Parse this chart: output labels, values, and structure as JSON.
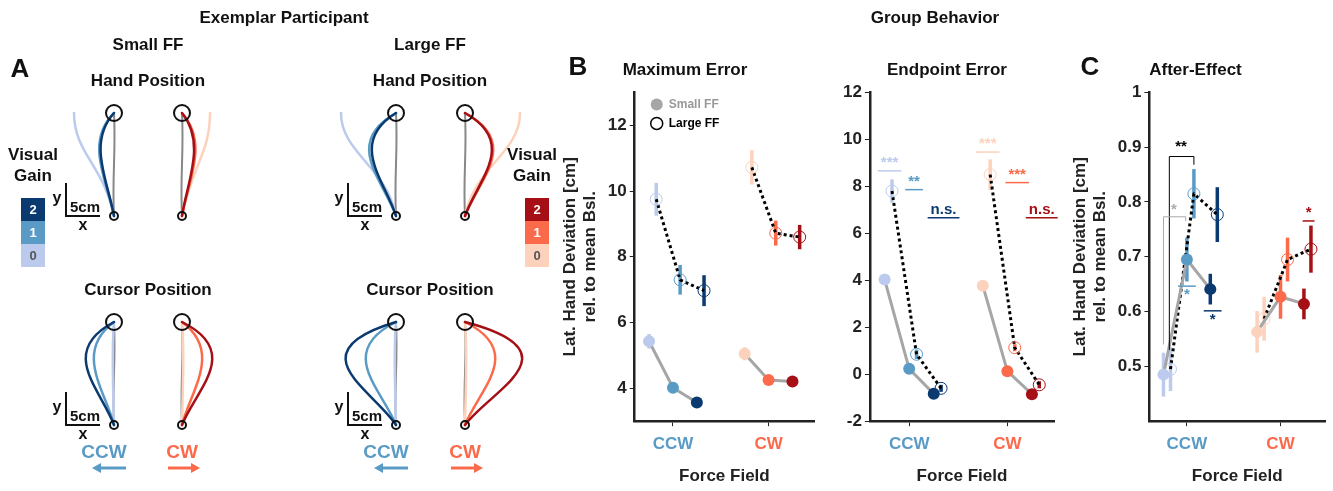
{
  "chart_data": [
    {
      "type": "other",
      "title": "Exemplar Participant",
      "annotations": [
        "A",
        "Small FF",
        "Large FF",
        "Hand Position",
        "Hand Position",
        "Cursor Position",
        "Cursor Position",
        "Visual Gain",
        "Visual Gain",
        "2",
        "1",
        "0",
        "2",
        "1",
        "0",
        "y",
        "5cm",
        "x",
        "y",
        "5cm",
        "x",
        "y",
        "5cm",
        "x",
        "y",
        "5cm",
        "x",
        "CCW",
        "CW",
        "CCW",
        "CW"
      ]
    },
    {
      "type": "line",
      "title": "Maximum Error",
      "xlabel": "Force Field",
      "ylabel": "Lat. Hand Deviation [cm]\nrel. to mean Bsl.",
      "categories": [
        null,
        "CCW",
        null,
        null,
        null,
        "CW",
        null
      ],
      "ylim": [
        3,
        13
      ],
      "yticks": [
        4,
        6,
        8,
        10,
        12
      ],
      "legend": "top left",
      "annotations": [
        "B",
        "Group Behavior"
      ],
      "series": [
        {
          "name": "Small FF",
          "type": "line",
          "color": "#a6a6a6",
          "colors": [
            "#bccbed",
            "#5a9bc6",
            "#0b3a70",
            null,
            "#fcd2bd",
            "#fb6a4a",
            "#a50f15"
          ],
          "marker": "circle",
          "line_style": "solid",
          "values": [
            5.43,
            4.02,
            3.57,
            null,
            5.05,
            4.25,
            4.21
          ],
          "errors": [
            0.22,
            0.13,
            0.12,
            null,
            0.2,
            0.12,
            0.12
          ]
        },
        {
          "name": "Large FF",
          "type": "line",
          "color": "#000000",
          "colors": [
            "#bccbed",
            "#5a9bc6",
            "#0b3a70",
            null,
            "#fcd2bd",
            "#fb6a4a",
            "#a50f15"
          ],
          "marker": "circle",
          "line_style": "dotted",
          "values": [
            9.75,
            7.3,
            6.97,
            null,
            10.72,
            8.72,
            8.6
          ],
          "errors": [
            0.5,
            0.45,
            0.47,
            null,
            0.52,
            0.38,
            0.37
          ]
        }
      ]
    },
    {
      "type": "line",
      "title": "Endpoint Error",
      "xlabel": "Force Field",
      "categories": [
        null,
        "CCW",
        null,
        null,
        null,
        "CW",
        null
      ],
      "ylim": [
        -2,
        12
      ],
      "yticks": [
        -2,
        0,
        2,
        4,
        6,
        8,
        10,
        12
      ],
      "annotations": [
        "***",
        "**",
        "n.s.",
        "***",
        "***",
        "n.s."
      ],
      "series": [
        {
          "type": "line",
          "color": "#a6a6a6",
          "colors": [
            "#bccbed",
            "#5a9bc6",
            "#0b3a70",
            null,
            "#fcd2bd",
            "#fb6a4a",
            "#a50f15"
          ],
          "marker": "circle",
          "line_style": "solid",
          "values": [
            4.03,
            0.23,
            -0.83,
            null,
            3.77,
            0.13,
            -0.85
          ],
          "errors": [
            0.15,
            0.1,
            0.1,
            null,
            0.15,
            0.1,
            0.1
          ]
        },
        {
          "type": "line",
          "color": "#000000",
          "colors": [
            "#bccbed",
            "#5a9bc6",
            "#0b3a70",
            null,
            "#fcd2bd",
            "#fb6a4a",
            "#a50f15"
          ],
          "marker": "circle",
          "line_style": "dotted",
          "values": [
            7.8,
            0.85,
            -0.6,
            null,
            8.5,
            1.13,
            -0.45
          ],
          "errors": [
            0.5,
            0.2,
            0.15,
            null,
            0.65,
            0.15,
            0.15
          ]
        }
      ]
    },
    {
      "type": "line",
      "title": "After-Effect",
      "xlabel": "Force Field",
      "ylabel": "Lat. Hand Deviation [cm]\nrel. to mean Bsl.",
      "categories": [
        null,
        "CCW",
        null,
        null,
        null,
        "CW",
        null
      ],
      "ylim": [
        0.4,
        1
      ],
      "yticks": [
        0.5,
        0.6,
        0.7,
        0.8,
        0.9,
        1
      ],
      "annotations": [
        "C",
        "**",
        "*",
        "*",
        "*",
        "*"
      ],
      "series": [
        {
          "type": "line",
          "color": "#a6a6a6",
          "colors": [
            "#bccbed",
            "#5a9bc6",
            "#0b3a70",
            null,
            "#fcd2bd",
            "#fb6a4a",
            "#a50f15"
          ],
          "marker": "circle",
          "line_style": "solid",
          "values": [
            0.485,
            0.695,
            0.641,
            null,
            0.563,
            0.627,
            0.614
          ],
          "errors": [
            0.04,
            0.04,
            0.028,
            null,
            0.038,
            0.04,
            0.028
          ]
        },
        {
          "type": "line",
          "color": "#000000",
          "colors": [
            "#bccbed",
            "#5a9bc6",
            "#0b3a70",
            null,
            "#fcd2bd",
            "#fb6a4a",
            "#a50f15"
          ],
          "marker": "circle",
          "line_style": "dotted",
          "values": [
            0.495,
            0.815,
            0.777,
            null,
            0.587,
            0.695,
            0.714
          ],
          "errors": [
            0.04,
            0.045,
            0.05,
            null,
            0.04,
            0.04,
            0.043
          ]
        }
      ]
    }
  ]
}
